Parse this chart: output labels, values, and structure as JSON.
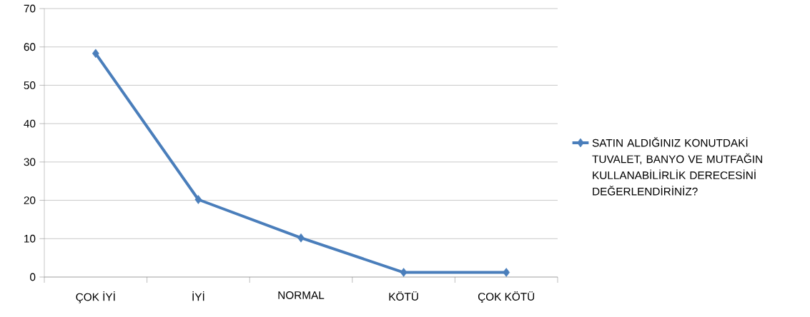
{
  "chart_data": {
    "type": "line",
    "categories": [
      "ÇOK İYİ",
      "İYİ",
      "NORMAL",
      "KÖTÜ",
      "ÇOK KÖTÜ"
    ],
    "series": [
      {
        "name": "SATIN ALDIĞINIZ KONUTDAKİ TUVALET, BANYO VE MUTFAĞIN KULLANABİLİRLİK DERECESİNİ DEĞERLENDİRİNİZ?",
        "color": "#4a7ebb",
        "values": [
          58.3,
          20.2,
          10.2,
          1.2,
          1.2
        ]
      }
    ],
    "ylim": [
      0,
      70
    ],
    "yticks": [
      0,
      10,
      20,
      30,
      40,
      50,
      60,
      70
    ],
    "grid": "y",
    "legend": "right",
    "marker": "diamond",
    "line_style": "solid"
  }
}
